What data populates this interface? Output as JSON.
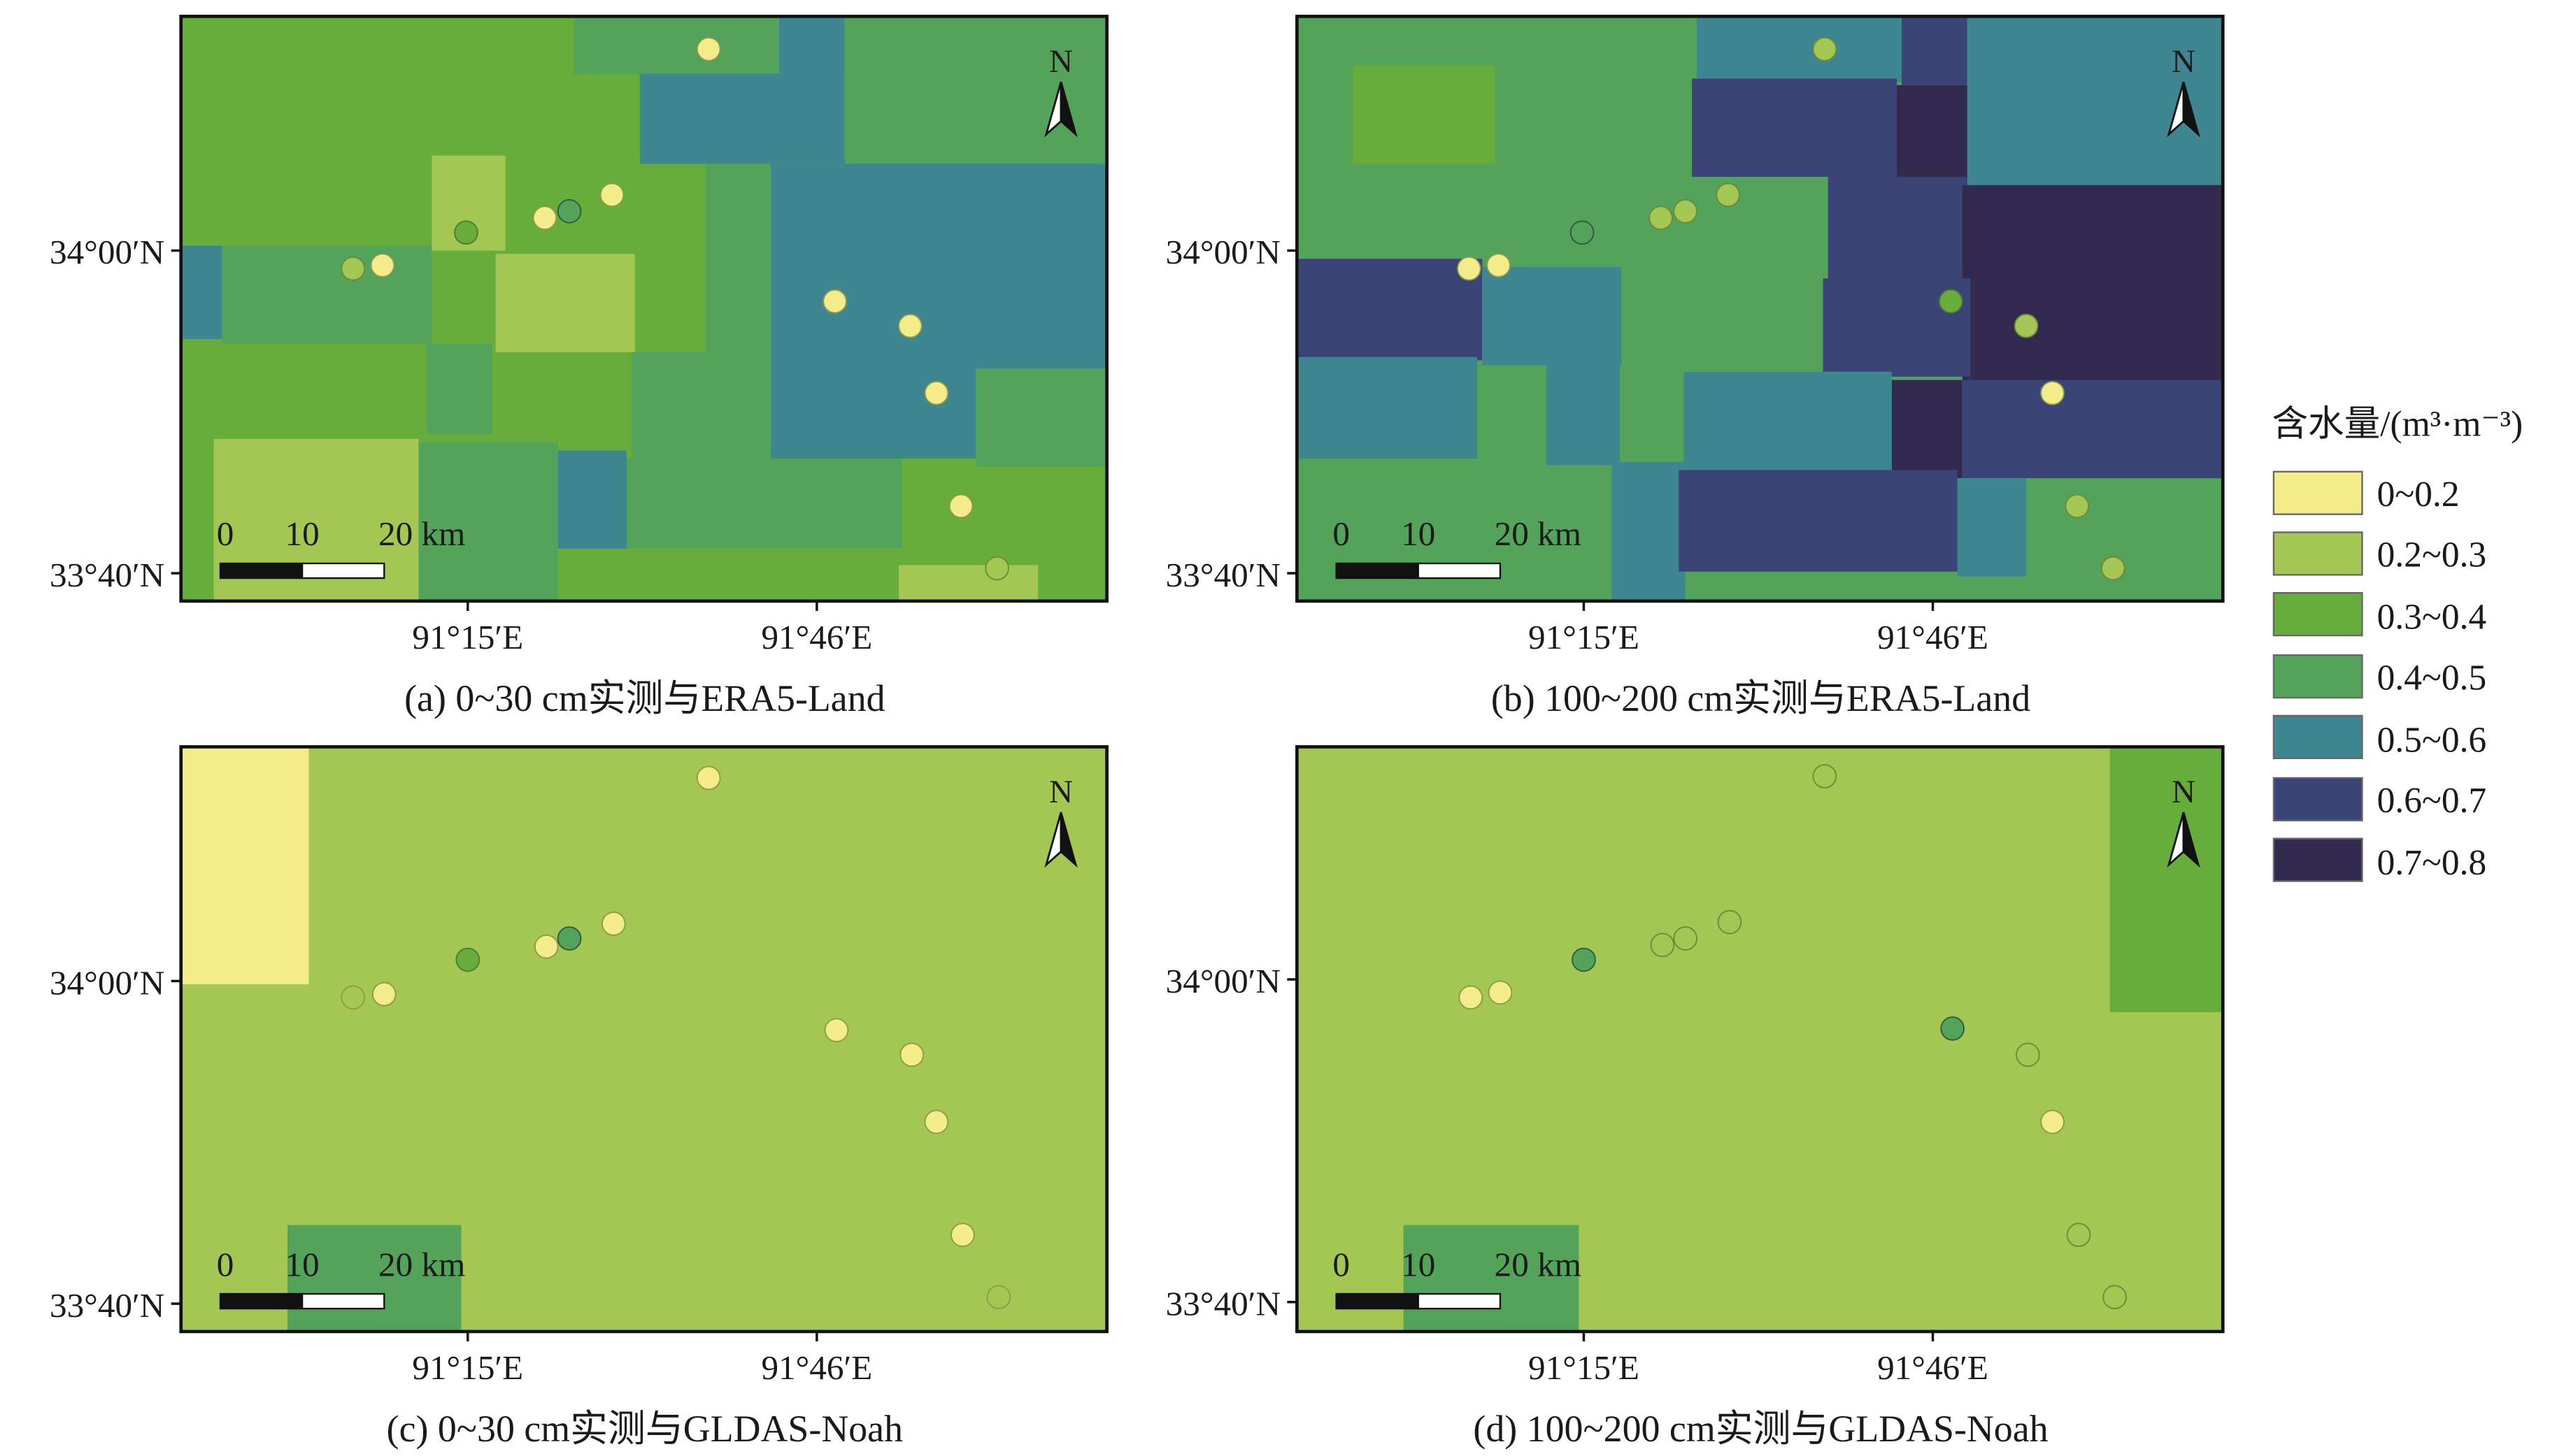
{
  "colors": {
    "c1": "#f4ec8a",
    "c2": "#a3c752",
    "c3": "#67ad3b",
    "c4": "#53a35b",
    "c5": "#3e8690",
    "c6": "#3b4476",
    "c7": "#322a4f"
  },
  "legend": {
    "title": "含水量/(m³·m⁻³)",
    "items": [
      {
        "label": "0~0.2",
        "color": "#f4ec8a"
      },
      {
        "label": "0.2~0.3",
        "color": "#a3c752"
      },
      {
        "label": "0.3~0.4",
        "color": "#67ad3b"
      },
      {
        "label": "0.4~0.5",
        "color": "#53a35b"
      },
      {
        "label": "0.5~0.6",
        "color": "#3e8690"
      },
      {
        "label": "0.6~0.7",
        "color": "#3b4476"
      },
      {
        "label": "0.7~0.8",
        "color": "#322a4f"
      }
    ]
  },
  "axes": {
    "lat_ticks": [
      "34°00′N",
      "33°40′N"
    ],
    "lon_ticks": [
      "91°15′E",
      "91°46′E"
    ]
  },
  "north_label": "N",
  "scalebar": {
    "labels": [
      "0",
      "10",
      "20 km"
    ]
  },
  "panels": [
    {
      "caption": "(a) 0~30 cm实测与ERA5-Land"
    },
    {
      "caption": "(b) 100~200 cm实测与ERA5-Land"
    },
    {
      "caption": "(c) 0~30 cm实测与GLDAS-Noah"
    },
    {
      "caption": "(d) 100~200 cm实测与GLDAS-Noah"
    }
  ]
}
